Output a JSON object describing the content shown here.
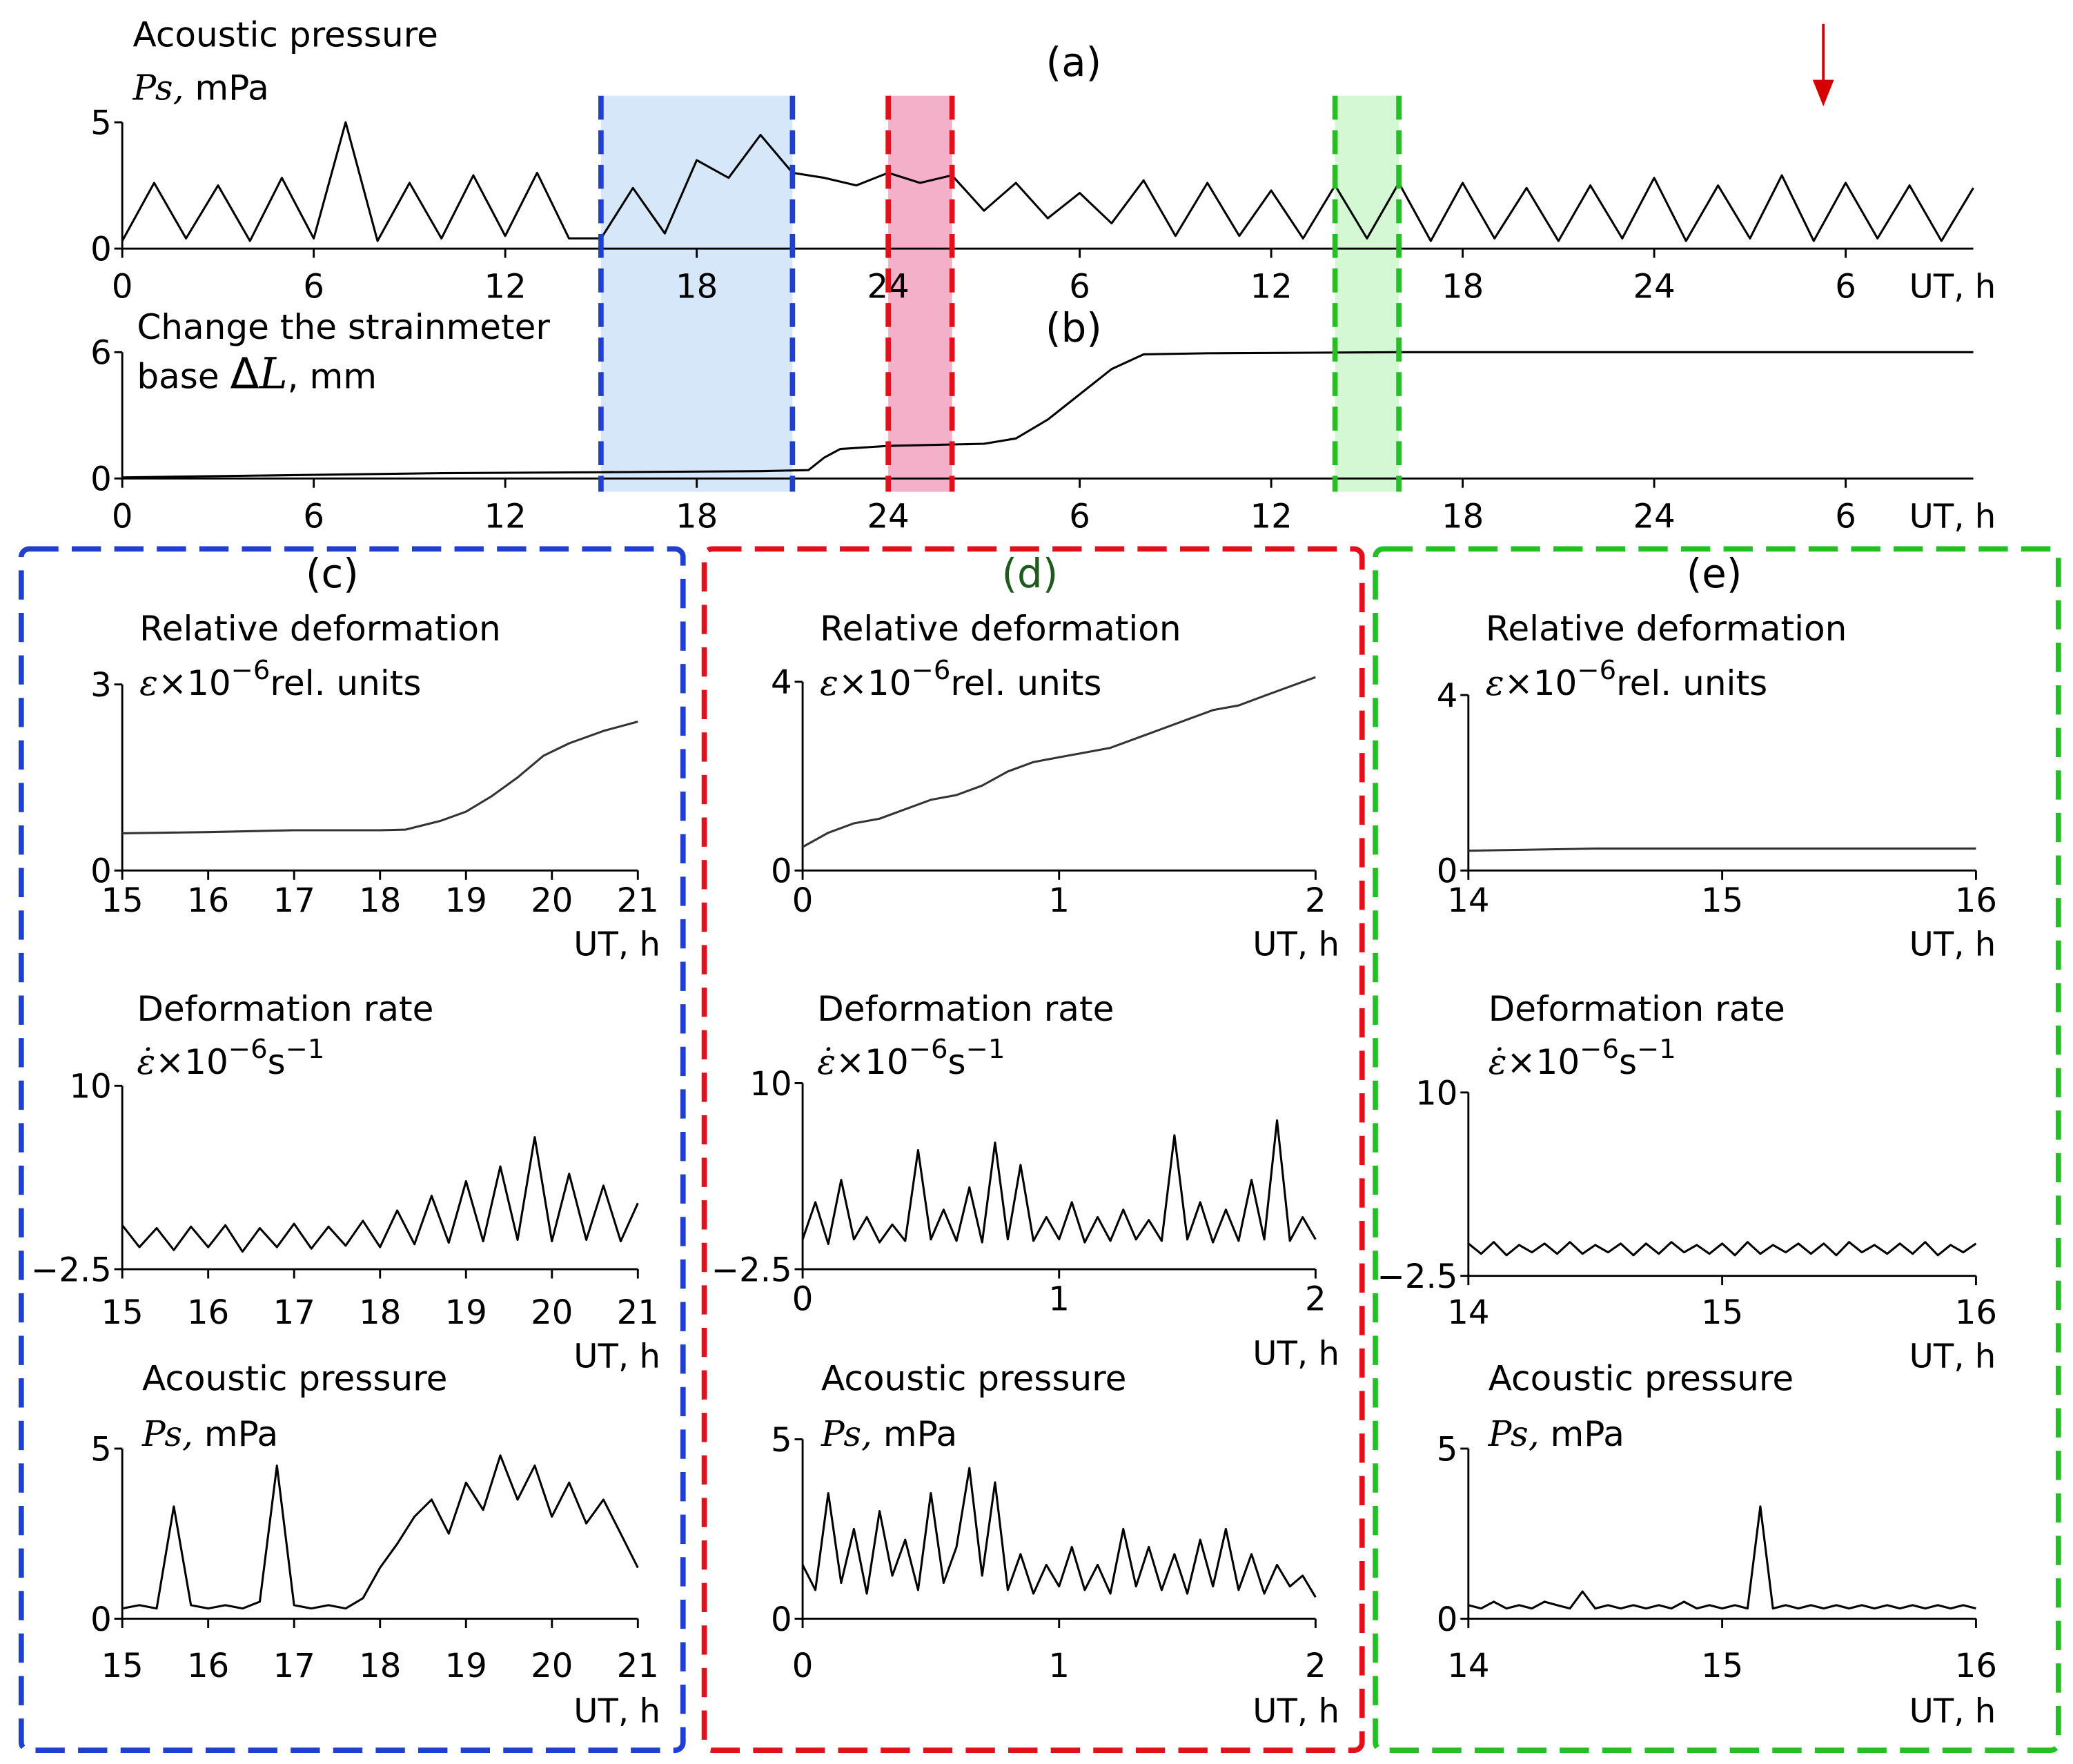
{
  "chart_data": [
    {
      "type": "line",
      "panel": "(a)",
      "title": "Acoustic pressure",
      "y_label": [
        {
          "text": "Ps,",
          "italic": true
        },
        {
          "text": " mPa"
        }
      ],
      "x_label": "UT, h",
      "xlim": [
        0,
        58
      ],
      "xticks": [
        0,
        6,
        12,
        18,
        24,
        {
          "value": 30,
          "label": "6"
        },
        {
          "value": 36,
          "label": "12"
        },
        {
          "value": 42,
          "label": "18"
        },
        {
          "value": 48,
          "label": "24"
        },
        {
          "value": 54,
          "label": "6"
        }
      ],
      "ylim": [
        0,
        5
      ],
      "yticks": [
        0,
        5
      ],
      "color": "#000000",
      "x": [
        0,
        1,
        2,
        3,
        4,
        5,
        6,
        7,
        8,
        9,
        10,
        11,
        12,
        13,
        14,
        15,
        16,
        17,
        18,
        19,
        20,
        21,
        22,
        23,
        24,
        25,
        26,
        27,
        28,
        29,
        30,
        31,
        32,
        33,
        34,
        35,
        36,
        37,
        38,
        39,
        40,
        41,
        42,
        43,
        44,
        45,
        46,
        47,
        48,
        49,
        50,
        51,
        52,
        53,
        54,
        55,
        56,
        57,
        58
      ],
      "values": [
        0.3,
        2.6,
        0.4,
        2.5,
        0.3,
        2.8,
        0.4,
        5.0,
        0.3,
        2.6,
        0.4,
        2.9,
        0.5,
        3.0,
        0.4,
        0.4,
        2.4,
        0.6,
        3.5,
        2.8,
        4.5,
        3.0,
        2.8,
        2.5,
        3.0,
        2.6,
        2.9,
        1.5,
        2.6,
        1.2,
        2.2,
        1.0,
        2.7,
        0.5,
        2.6,
        0.5,
        2.3,
        0.4,
        2.5,
        0.4,
        2.6,
        0.3,
        2.6,
        0.4,
        2.4,
        0.3,
        2.5,
        0.4,
        2.8,
        0.3,
        2.5,
        0.4,
        2.9,
        0.3,
        2.6,
        0.4,
        2.5,
        0.3,
        2.4
      ],
      "spans": [
        {
          "start": 15,
          "end": 21,
          "color": "#1f3fd1",
          "fill": "#cfe3f8"
        },
        {
          "start": 24,
          "end": 26,
          "color": "#e0111a",
          "fill": "#f3a2c0"
        },
        {
          "start": 38,
          "end": 40,
          "color": "#22c022",
          "fill": "#cbf7cb"
        }
      ],
      "arrow_x": 53.3,
      "arrow_color": "#d40000"
    },
    {
      "type": "line",
      "panel": "(b)",
      "title": "Change the strainmeter",
      "y_label": [
        {
          "text": "base "
        },
        {
          "text": "Δ",
          "big": true
        },
        {
          "text": "L",
          "italic": true,
          "big": true
        },
        {
          "text": ", mm"
        }
      ],
      "x_label": "UT, h",
      "xlim": [
        0,
        58
      ],
      "xticks": [
        0,
        6,
        12,
        18,
        24,
        {
          "value": 30,
          "label": "6"
        },
        {
          "value": 36,
          "label": "12"
        },
        {
          "value": 42,
          "label": "18"
        },
        {
          "value": 48,
          "label": "24"
        },
        {
          "value": 54,
          "label": "6"
        }
      ],
      "ylim": [
        0,
        6
      ],
      "yticks": [
        0,
        6
      ],
      "color": "#000000",
      "x": [
        0,
        5,
        10,
        15,
        20,
        21.5,
        22,
        22.5,
        24,
        27,
        28,
        29,
        30,
        31,
        32,
        34,
        40,
        50,
        58
      ],
      "values": [
        0.05,
        0.15,
        0.25,
        0.3,
        0.35,
        0.4,
        1.0,
        1.4,
        1.55,
        1.65,
        1.9,
        2.8,
        4.0,
        5.2,
        5.9,
        5.95,
        6.0,
        6.0,
        6.0
      ]
    },
    {
      "type": "line",
      "panel": "(c)",
      "panel_color": "#000000",
      "title": "Relative deformation",
      "y_label": [
        {
          "text": "ε",
          "italic": true
        },
        {
          "text": "×10"
        },
        {
          "text": "−6",
          "sup": true
        },
        {
          "text": "rel. units"
        }
      ],
      "x_label": "UT, h",
      "xlim": [
        15,
        21
      ],
      "xticks": [
        15,
        16,
        17,
        18,
        19,
        20,
        21
      ],
      "ylim": [
        0,
        3
      ],
      "yticks": [
        0,
        3
      ],
      "color": "#333333",
      "x": [
        15,
        16,
        17,
        18,
        18.3,
        18.7,
        19,
        19.3,
        19.6,
        19.9,
        20.2,
        20.6,
        21
      ],
      "values": [
        0.6,
        0.62,
        0.65,
        0.65,
        0.66,
        0.8,
        0.95,
        1.2,
        1.5,
        1.85,
        2.05,
        2.25,
        2.4
      ]
    },
    {
      "type": "line",
      "title": "Deformation rate",
      "y_label": [
        {
          "text": "ε̇",
          "italic": true
        },
        {
          "text": "×10"
        },
        {
          "text": "−6",
          "sup": true
        },
        {
          "text": "s"
        },
        {
          "text": "−1",
          "sup": true
        }
      ],
      "x_label": "UT, h",
      "xlim": [
        15,
        21
      ],
      "xticks": [
        15,
        16,
        17,
        18,
        19,
        20,
        21
      ],
      "ylim": [
        -2.5,
        10
      ],
      "yticks": [
        {
          "value": -2.5,
          "label": "−2.5"
        },
        10
      ],
      "color": "#000000",
      "x": [
        15,
        15.2,
        15.4,
        15.6,
        15.8,
        16,
        16.2,
        16.4,
        16.6,
        16.8,
        17,
        17.2,
        17.4,
        17.6,
        17.8,
        18,
        18.2,
        18.4,
        18.6,
        18.8,
        19,
        19.2,
        19.4,
        19.6,
        19.8,
        20,
        20.2,
        20.4,
        20.6,
        20.8,
        21
      ],
      "values": [
        0.5,
        -1,
        0.3,
        -1.2,
        0.4,
        -1,
        0.5,
        -1.3,
        0.3,
        -1,
        0.6,
        -1.1,
        0.4,
        -0.9,
        0.8,
        -1,
        1.5,
        -0.8,
        2.5,
        -0.7,
        3.5,
        -0.6,
        4.5,
        -0.5,
        6.5,
        -0.6,
        4.0,
        -0.5,
        3.2,
        -0.6,
        2.0
      ]
    },
    {
      "type": "line",
      "title": "Acoustic pressure",
      "y_label": [
        {
          "text": "Ps,",
          "italic": true
        },
        {
          "text": " mPa"
        }
      ],
      "x_label": "UT, h",
      "xlim": [
        15,
        21
      ],
      "xticks": [
        15,
        16,
        17,
        18,
        19,
        20,
        21
      ],
      "ylim": [
        0,
        5
      ],
      "yticks": [
        0,
        5
      ],
      "color": "#000000",
      "x": [
        15,
        15.2,
        15.4,
        15.6,
        15.8,
        16,
        16.2,
        16.4,
        16.6,
        16.8,
        17,
        17.2,
        17.4,
        17.6,
        17.8,
        18,
        18.2,
        18.4,
        18.6,
        18.8,
        19,
        19.2,
        19.4,
        19.6,
        19.8,
        20,
        20.2,
        20.4,
        20.6,
        20.8,
        21
      ],
      "values": [
        0.3,
        0.4,
        0.3,
        3.3,
        0.4,
        0.3,
        0.4,
        0.3,
        0.5,
        4.5,
        0.4,
        0.3,
        0.4,
        0.3,
        0.6,
        1.5,
        2.2,
        3.0,
        3.5,
        2.5,
        4.0,
        3.2,
        4.8,
        3.5,
        4.5,
        3.0,
        4.0,
        2.8,
        3.5,
        2.5,
        1.5
      ]
    },
    {
      "type": "line",
      "panel": "(d)",
      "panel_color": "#1e5a1e",
      "title": "Relative deformation",
      "y_label": [
        {
          "text": "ε",
          "italic": true
        },
        {
          "text": "×10"
        },
        {
          "text": "−6",
          "sup": true
        },
        {
          "text": "rel. units"
        }
      ],
      "x_label": "UT, h",
      "xlim": [
        0,
        2
      ],
      "xticks": [
        0,
        1,
        2
      ],
      "ylim": [
        0,
        4
      ],
      "yticks": [
        0,
        4
      ],
      "color": "#333333",
      "x": [
        0,
        0.1,
        0.2,
        0.3,
        0.4,
        0.5,
        0.6,
        0.7,
        0.8,
        0.9,
        1,
        1.1,
        1.2,
        1.3,
        1.4,
        1.5,
        1.6,
        1.7,
        1.8,
        1.9,
        2
      ],
      "values": [
        0.5,
        0.8,
        1.0,
        1.1,
        1.3,
        1.5,
        1.6,
        1.8,
        2.1,
        2.3,
        2.4,
        2.5,
        2.6,
        2.8,
        3.0,
        3.2,
        3.4,
        3.5,
        3.7,
        3.9,
        4.1
      ]
    },
    {
      "type": "line",
      "title": "Deformation rate",
      "y_label": [
        {
          "text": "ε̇",
          "italic": true
        },
        {
          "text": "×10"
        },
        {
          "text": "−6",
          "sup": true
        },
        {
          "text": "s"
        },
        {
          "text": "−1",
          "sup": true
        }
      ],
      "x_label": "UT, h",
      "xlim": [
        0,
        2
      ],
      "xticks": [
        0,
        1,
        2
      ],
      "ylim": [
        -2.5,
        10
      ],
      "yticks": [
        {
          "value": -2.5,
          "label": "−2.5"
        },
        10
      ],
      "color": "#000000",
      "x": [
        0,
        0.05,
        0.1,
        0.15,
        0.2,
        0.25,
        0.3,
        0.35,
        0.4,
        0.45,
        0.5,
        0.55,
        0.6,
        0.65,
        0.7,
        0.75,
        0.8,
        0.85,
        0.9,
        0.95,
        1,
        1.05,
        1.1,
        1.15,
        1.2,
        1.25,
        1.3,
        1.35,
        1.4,
        1.45,
        1.5,
        1.55,
        1.6,
        1.65,
        1.7,
        1.75,
        1.8,
        1.85,
        1.9,
        1.95,
        2
      ],
      "values": [
        -0.5,
        2,
        -0.8,
        3.5,
        -0.5,
        1,
        -0.7,
        0.5,
        -0.6,
        5.5,
        -0.5,
        1.5,
        -0.6,
        3,
        -0.7,
        6,
        -0.5,
        4.5,
        -0.6,
        1,
        -0.5,
        2,
        -0.7,
        1,
        -0.6,
        1.5,
        -0.5,
        0.8,
        -0.6,
        6.5,
        -0.5,
        2,
        -0.7,
        1.5,
        -0.6,
        3.5,
        -0.5,
        7.5,
        -0.6,
        1,
        -0.5
      ]
    },
    {
      "type": "line",
      "title": "Acoustic pressure",
      "y_label": [
        {
          "text": "Ps,",
          "italic": true
        },
        {
          "text": " mPa"
        }
      ],
      "x_label": "UT, h",
      "xlim": [
        0,
        2
      ],
      "xticks": [
        0,
        1,
        2
      ],
      "ylim": [
        0,
        5
      ],
      "yticks": [
        0,
        5
      ],
      "color": "#000000",
      "x": [
        0,
        0.05,
        0.1,
        0.15,
        0.2,
        0.25,
        0.3,
        0.35,
        0.4,
        0.45,
        0.5,
        0.55,
        0.6,
        0.65,
        0.7,
        0.75,
        0.8,
        0.85,
        0.9,
        0.95,
        1,
        1.05,
        1.1,
        1.15,
        1.2,
        1.25,
        1.3,
        1.35,
        1.4,
        1.45,
        1.5,
        1.55,
        1.6,
        1.65,
        1.7,
        1.75,
        1.8,
        1.85,
        1.9,
        1.95,
        2
      ],
      "values": [
        1.5,
        0.8,
        3.5,
        1,
        2.5,
        0.7,
        3.0,
        1.2,
        2.2,
        0.8,
        3.5,
        1,
        2.0,
        4.2,
        1.2,
        3.8,
        0.8,
        1.8,
        0.7,
        1.5,
        0.9,
        2.0,
        0.8,
        1.5,
        0.7,
        2.5,
        0.9,
        2.0,
        0.8,
        1.8,
        0.7,
        2.2,
        0.9,
        2.5,
        0.8,
        1.8,
        0.7,
        1.5,
        0.9,
        1.2,
        0.6
      ]
    },
    {
      "type": "line",
      "panel": "(e)",
      "panel_color": "#000000",
      "title": "Relative deformation",
      "y_label": [
        {
          "text": "ε",
          "italic": true
        },
        {
          "text": "×10"
        },
        {
          "text": "−6",
          "sup": true
        },
        {
          "text": "rel. units"
        }
      ],
      "x_label": "UT, h",
      "xlim": [
        14,
        16
      ],
      "xticks": [
        14,
        15,
        16
      ],
      "ylim": [
        0,
        4
      ],
      "yticks": [
        0,
        4
      ],
      "color": "#333333",
      "x": [
        14,
        14.5,
        15,
        15.5,
        16
      ],
      "values": [
        0.45,
        0.5,
        0.5,
        0.5,
        0.5
      ]
    },
    {
      "type": "line",
      "title": "Deformation rate",
      "y_label": [
        {
          "text": "ε̇",
          "italic": true
        },
        {
          "text": "×10"
        },
        {
          "text": "−6",
          "sup": true
        },
        {
          "text": "s"
        },
        {
          "text": "−1",
          "sup": true
        }
      ],
      "x_label": "UT, h",
      "xlim": [
        14,
        16
      ],
      "xticks": [
        14,
        15,
        16
      ],
      "ylim": [
        -2.5,
        10
      ],
      "yticks": [
        {
          "value": -2.5,
          "label": "−2.5"
        },
        10
      ],
      "color": "#000000",
      "x": [
        14,
        14.05,
        14.1,
        14.15,
        14.2,
        14.25,
        14.3,
        14.35,
        14.4,
        14.45,
        14.5,
        14.55,
        14.6,
        14.65,
        14.7,
        14.75,
        14.8,
        14.85,
        14.9,
        14.95,
        15,
        15.05,
        15.1,
        15.15,
        15.2,
        15.25,
        15.3,
        15.35,
        15.4,
        15.45,
        15.5,
        15.55,
        15.6,
        15.65,
        15.7,
        15.75,
        15.8,
        15.85,
        15.9,
        15.95,
        16
      ],
      "values": [
        -0.3,
        -1.0,
        -0.2,
        -1.1,
        -0.4,
        -0.9,
        -0.3,
        -1.0,
        -0.2,
        -1.0,
        -0.4,
        -0.9,
        -0.3,
        -1.1,
        -0.3,
        -1.0,
        -0.2,
        -0.9,
        -0.4,
        -1.0,
        -0.3,
        -1.1,
        -0.2,
        -1.0,
        -0.4,
        -0.9,
        -0.3,
        -1.0,
        -0.3,
        -1.1,
        -0.2,
        -0.9,
        -0.4,
        -1.0,
        -0.3,
        -1.0,
        -0.2,
        -1.1,
        -0.4,
        -0.9,
        -0.3
      ]
    },
    {
      "type": "line",
      "title": "Acoustic pressure",
      "y_label": [
        {
          "text": "Ps,",
          "italic": true
        },
        {
          "text": " mPa"
        }
      ],
      "x_label": "UT, h",
      "xlim": [
        14,
        16
      ],
      "xticks": [
        14,
        15,
        16
      ],
      "ylim": [
        0,
        5
      ],
      "yticks": [
        0,
        5
      ],
      "color": "#000000",
      "x": [
        14,
        14.05,
        14.1,
        14.15,
        14.2,
        14.25,
        14.3,
        14.35,
        14.4,
        14.45,
        14.5,
        14.55,
        14.6,
        14.65,
        14.7,
        14.75,
        14.8,
        14.85,
        14.9,
        14.95,
        15,
        15.05,
        15.1,
        15.15,
        15.2,
        15.25,
        15.3,
        15.35,
        15.4,
        15.45,
        15.5,
        15.55,
        15.6,
        15.65,
        15.7,
        15.75,
        15.8,
        15.85,
        15.9,
        15.95,
        16
      ],
      "values": [
        0.4,
        0.3,
        0.5,
        0.3,
        0.4,
        0.3,
        0.5,
        0.4,
        0.3,
        0.8,
        0.3,
        0.4,
        0.3,
        0.4,
        0.3,
        0.4,
        0.3,
        0.5,
        0.3,
        0.4,
        0.3,
        0.4,
        0.3,
        3.3,
        0.3,
        0.4,
        0.3,
        0.4,
        0.3,
        0.4,
        0.3,
        0.4,
        0.3,
        0.4,
        0.3,
        0.4,
        0.3,
        0.4,
        0.3,
        0.4,
        0.3
      ]
    }
  ]
}
